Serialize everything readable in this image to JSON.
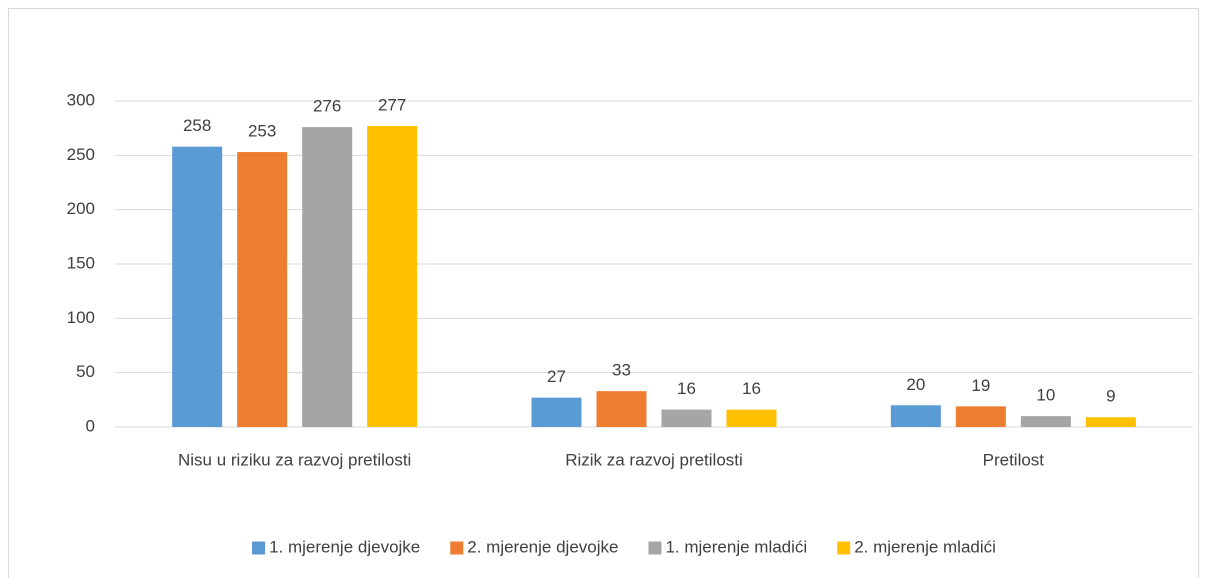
{
  "chart_data": {
    "type": "bar",
    "categories": [
      "Nisu u riziku za razvoj pretilosti",
      "Rizik za razvoj pretilosti",
      "Pretilost"
    ],
    "series": [
      {
        "name": "1. mjerenje djevojke",
        "color": "#5b9bd5",
        "values": [
          258,
          27,
          20
        ]
      },
      {
        "name": "2. mjerenje djevojke",
        "color": "#ed7d31",
        "values": [
          253,
          33,
          19
        ]
      },
      {
        "name": "1. mjerenje mladići",
        "color": "#a5a5a5",
        "values": [
          276,
          16,
          10
        ]
      },
      {
        "name": "2. mjerenje mladići",
        "color": "#ffc000",
        "values": [
          277,
          16,
          9
        ]
      }
    ],
    "ylim": [
      0,
      300
    ],
    "yticks": [
      0,
      50,
      100,
      150,
      200,
      250,
      300
    ],
    "grid": true,
    "legend": "bottom",
    "data_labels": true
  }
}
